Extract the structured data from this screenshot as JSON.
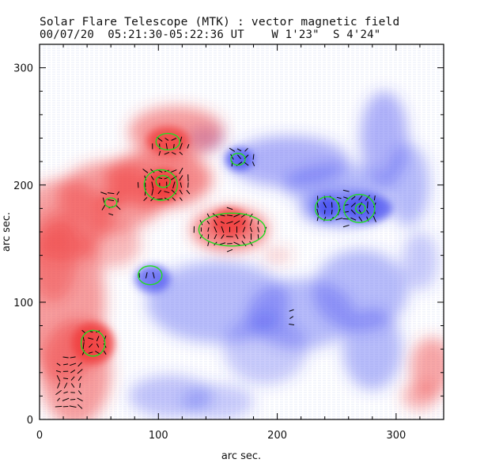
{
  "header": {
    "title": "Solar Flare Telescope (MTK) : vector magnetic field",
    "subtitle": "00/07/20  05:21:30-05:22:36 UT    W 1'23\"  S 4'24\""
  },
  "chart_data": {
    "type": "heatmap",
    "title": "Solar Flare Telescope (MTK) : vector magnetic field",
    "subtitle": "00/07/20  05:21:30-05:22:36 UT    W 1'23\"  S 4'24\"",
    "xlabel": "arc sec.",
    "ylabel": "arc sec.",
    "xlim": [
      0,
      340
    ],
    "ylim": [
      0,
      320
    ],
    "x_ticks": [
      0,
      100,
      200,
      300
    ],
    "y_ticks": [
      0,
      100,
      200,
      300
    ],
    "colors": {
      "positive_polarity": "#f03c3c",
      "negative_polarity": "#3c46f0",
      "contours": "#22dd22",
      "vectors": "#000000"
    },
    "positive_regions": [
      {
        "x": 115,
        "y": 245,
        "rx": 40,
        "ry": 22,
        "w": 1.0
      },
      {
        "x": 108,
        "y": 238,
        "rx": 18,
        "ry": 12,
        "w": 1.6
      },
      {
        "x": 100,
        "y": 205,
        "rx": 45,
        "ry": 25,
        "w": 1.2
      },
      {
        "x": 105,
        "y": 200,
        "rx": 15,
        "ry": 14,
        "w": 1.8
      },
      {
        "x": 60,
        "y": 190,
        "rx": 45,
        "ry": 30,
        "w": 1.0
      },
      {
        "x": 60,
        "y": 185,
        "rx": 10,
        "ry": 8,
        "w": 1.3
      },
      {
        "x": 20,
        "y": 170,
        "rx": 40,
        "ry": 35,
        "w": 0.9
      },
      {
        "x": 12,
        "y": 140,
        "rx": 20,
        "ry": 40,
        "w": 0.8
      },
      {
        "x": 20,
        "y": 100,
        "rx": 35,
        "ry": 70,
        "w": 1.0
      },
      {
        "x": 30,
        "y": 40,
        "rx": 30,
        "ry": 45,
        "w": 1.0
      },
      {
        "x": 45,
        "y": 65,
        "rx": 18,
        "ry": 18,
        "w": 1.7
      },
      {
        "x": 60,
        "y": 150,
        "rx": 25,
        "ry": 20,
        "w": 0.7
      },
      {
        "x": 160,
        "y": 162,
        "rx": 32,
        "ry": 18,
        "w": 1.3
      },
      {
        "x": 160,
        "y": 168,
        "rx": 15,
        "ry": 12,
        "w": 1.7
      },
      {
        "x": 200,
        "y": 140,
        "rx": 12,
        "ry": 6,
        "w": 0.5
      },
      {
        "x": 330,
        "y": 45,
        "rx": 18,
        "ry": 25,
        "w": 0.9
      },
      {
        "x": 320,
        "y": 20,
        "rx": 15,
        "ry": 12,
        "w": 0.8
      }
    ],
    "negative_regions": [
      {
        "x": 210,
        "y": 220,
        "rx": 50,
        "ry": 22,
        "w": 0.9
      },
      {
        "x": 168,
        "y": 222,
        "rx": 12,
        "ry": 10,
        "w": 1.6
      },
      {
        "x": 250,
        "y": 200,
        "rx": 45,
        "ry": 18,
        "w": 0.8
      },
      {
        "x": 255,
        "y": 180,
        "rx": 35,
        "ry": 15,
        "w": 1.2
      },
      {
        "x": 275,
        "y": 180,
        "rx": 22,
        "ry": 12,
        "w": 1.5
      },
      {
        "x": 242,
        "y": 180,
        "rx": 10,
        "ry": 10,
        "w": 1.6
      },
      {
        "x": 290,
        "y": 240,
        "rx": 20,
        "ry": 40,
        "w": 0.9
      },
      {
        "x": 310,
        "y": 200,
        "rx": 18,
        "ry": 35,
        "w": 0.8
      },
      {
        "x": 140,
        "y": 240,
        "rx": 15,
        "ry": 10,
        "w": 0.7
      },
      {
        "x": 95,
        "y": 120,
        "rx": 15,
        "ry": 12,
        "w": 1.5
      },
      {
        "x": 150,
        "y": 100,
        "rx": 60,
        "ry": 35,
        "w": 0.8
      },
      {
        "x": 220,
        "y": 90,
        "rx": 45,
        "ry": 30,
        "w": 0.8
      },
      {
        "x": 270,
        "y": 110,
        "rx": 40,
        "ry": 35,
        "w": 0.8
      },
      {
        "x": 280,
        "y": 60,
        "rx": 25,
        "ry": 35,
        "w": 0.8
      },
      {
        "x": 190,
        "y": 60,
        "rx": 35,
        "ry": 30,
        "w": 0.6
      },
      {
        "x": 110,
        "y": 20,
        "rx": 35,
        "ry": 18,
        "w": 0.7
      },
      {
        "x": 150,
        "y": 15,
        "rx": 30,
        "ry": 15,
        "w": 0.6
      },
      {
        "x": 320,
        "y": 135,
        "rx": 15,
        "ry": 25,
        "w": 0.6
      }
    ],
    "contours": [
      {
        "x": 108,
        "y": 237,
        "rx": 10,
        "ry": 7
      },
      {
        "x": 102,
        "y": 200,
        "rx": 14,
        "ry": 13
      },
      {
        "x": 104,
        "y": 203,
        "rx": 6,
        "ry": 5
      },
      {
        "x": 60,
        "y": 185,
        "rx": 5,
        "ry": 4
      },
      {
        "x": 162,
        "y": 162,
        "rx": 28,
        "ry": 14
      },
      {
        "x": 167,
        "y": 222,
        "rx": 6,
        "ry": 5
      },
      {
        "x": 242,
        "y": 180,
        "rx": 10,
        "ry": 10
      },
      {
        "x": 269,
        "y": 180,
        "rx": 13,
        "ry": 12
      },
      {
        "x": 270,
        "y": 180,
        "rx": 4,
        "ry": 4
      },
      {
        "x": 93,
        "y": 123,
        "rx": 10,
        "ry": 8
      },
      {
        "x": 45,
        "y": 65,
        "rx": 10,
        "ry": 11
      }
    ],
    "vector_clusters": [
      {
        "x": 110,
        "y": 233,
        "rx": 15,
        "ry": 12
      },
      {
        "x": 105,
        "y": 200,
        "rx": 22,
        "ry": 18
      },
      {
        "x": 60,
        "y": 185,
        "rx": 12,
        "ry": 10
      },
      {
        "x": 160,
        "y": 162,
        "rx": 30,
        "ry": 18
      },
      {
        "x": 170,
        "y": 222,
        "rx": 14,
        "ry": 10
      },
      {
        "x": 258,
        "y": 180,
        "rx": 30,
        "ry": 15
      },
      {
        "x": 45,
        "y": 65,
        "rx": 14,
        "ry": 14
      },
      {
        "x": 25,
        "y": 30,
        "rx": 15,
        "ry": 25
      },
      {
        "x": 92,
        "y": 123,
        "rx": 8,
        "ry": 6
      },
      {
        "x": 210,
        "y": 85,
        "rx": 4,
        "ry": 10
      }
    ]
  }
}
